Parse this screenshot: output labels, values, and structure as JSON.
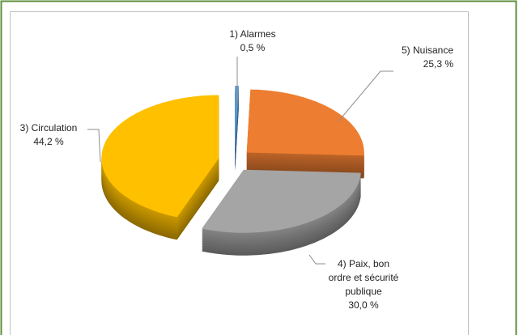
{
  "chart_data": {
    "type": "pie",
    "categories": [
      "1) Alarmes",
      "5) Nuisance",
      "4) Paix, bon ordre et sécurité publique",
      "3) Circulation"
    ],
    "values": [
      0.5,
      25.3,
      30.0,
      44.2
    ],
    "value_labels": [
      "0,5 %",
      "25,3 %",
      "30,0 %",
      "44,2 %"
    ],
    "colors": [
      "#5b9bd5",
      "#ed7d31",
      "#a5a5a5",
      "#ffc000"
    ]
  }
}
